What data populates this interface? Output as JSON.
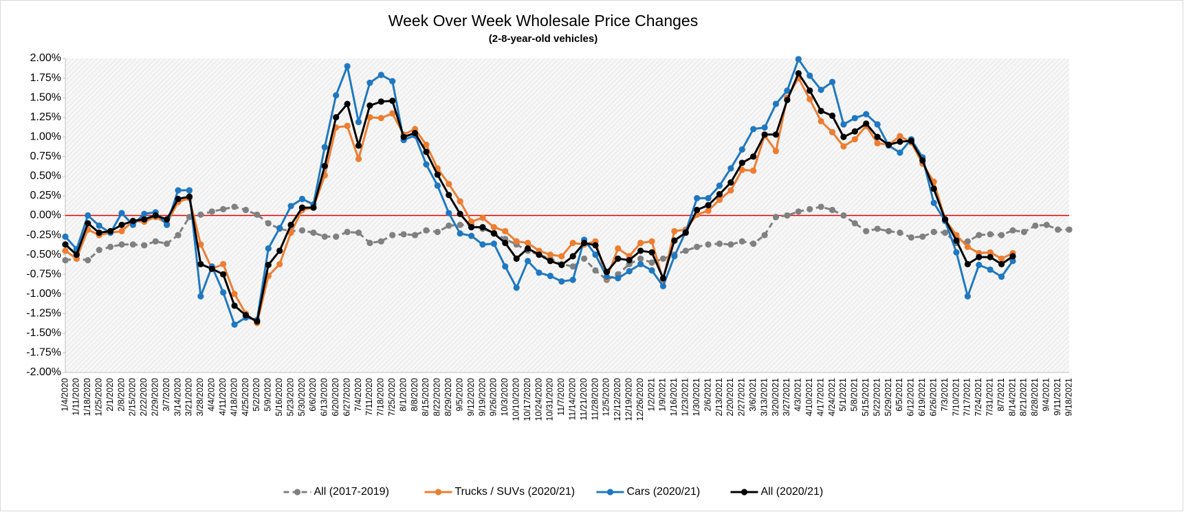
{
  "chart_data": {
    "type": "line",
    "title": "Week Over Week Wholesale Price Changes",
    "subtitle": "(2-8-year-old vehicles)",
    "categories": [
      "1/4/2020",
      "1/11/2020",
      "1/18/2020",
      "1/25/2020",
      "2/1/2020",
      "2/8/2020",
      "2/15/2020",
      "2/22/2020",
      "2/29/2020",
      "3/7/2020",
      "3/14/2020",
      "3/21/2020",
      "3/28/2020",
      "4/4/2020",
      "4/11/2020",
      "4/18/2020",
      "4/25/2020",
      "5/2/2020",
      "5/9/2020",
      "5/16/2020",
      "5/23/2020",
      "5/30/2020",
      "6/6/2020",
      "6/13/2020",
      "6/20/2020",
      "6/27/2020",
      "7/4/2020",
      "7/11/2020",
      "7/18/2020",
      "7/25/2020",
      "8/1/2020",
      "8/8/2020",
      "8/15/2020",
      "8/22/2020",
      "8/29/2020",
      "9/5/2020",
      "9/12/2020",
      "9/19/2020",
      "9/26/2020",
      "10/3/2020",
      "10/10/2020",
      "10/17/2020",
      "10/24/2020",
      "10/31/2020",
      "11/7/2020",
      "11/14/2020",
      "11/21/2020",
      "11/28/2020",
      "12/5/2020",
      "12/12/2020",
      "12/19/2020",
      "12/26/2020",
      "1/2/2021",
      "1/9/2021",
      "1/16/2021",
      "1/23/2021",
      "1/30/2021",
      "2/6/2021",
      "2/13/2021",
      "2/20/2021",
      "2/27/2021",
      "3/6/2021",
      "3/13/2021",
      "3/20/2021",
      "3/27/2021",
      "4/3/2021",
      "4/10/2021",
      "4/17/2021",
      "4/24/2021",
      "5/1/2021",
      "5/8/2021",
      "5/15/2021",
      "5/22/2021",
      "5/29/2021",
      "6/5/2021",
      "6/12/2021",
      "6/19/2021",
      "6/26/2021",
      "7/3/2021",
      "7/10/2021",
      "7/17/2021",
      "7/24/2021",
      "7/31/2021",
      "8/7/2021",
      "8/14/2021",
      "8/21/2021",
      "8/28/2021",
      "9/4/2021",
      "9/11/2021",
      "9/18/2021"
    ],
    "series": [
      {
        "name": "All (2017-2019)",
        "color": "#808080",
        "style": "dashed",
        "values": [
          -0.57,
          -0.55,
          -0.57,
          -0.44,
          -0.4,
          -0.37,
          -0.37,
          -0.38,
          -0.33,
          -0.36,
          -0.25,
          -0.02,
          0.01,
          0.05,
          0.08,
          0.11,
          0.07,
          0.01,
          -0.1,
          -0.17,
          -0.2,
          -0.19,
          -0.22,
          -0.27,
          -0.27,
          -0.21,
          -0.22,
          -0.35,
          -0.33,
          -0.25,
          -0.24,
          -0.25,
          -0.19,
          -0.21,
          -0.13,
          -0.12,
          -0.12,
          -0.17,
          -0.22,
          -0.3,
          -0.37,
          -0.45,
          -0.5,
          -0.55,
          -0.62,
          -0.65,
          -0.55,
          -0.7,
          -0.82,
          -0.75,
          -0.62,
          -0.55,
          -0.6,
          -0.55,
          -0.5,
          -0.45,
          -0.4,
          -0.37,
          -0.36,
          -0.37,
          -0.33,
          -0.36,
          -0.25,
          -0.02,
          0.0,
          0.05,
          0.08,
          0.11,
          0.07,
          0.0,
          -0.1,
          -0.2,
          -0.17,
          -0.2,
          -0.22,
          -0.28,
          -0.27,
          -0.21,
          -0.22,
          -0.35,
          -0.33,
          -0.25,
          -0.24,
          -0.25,
          -0.19,
          -0.21,
          -0.13,
          -0.12,
          -0.18,
          -0.18
        ]
      },
      {
        "name": "Trucks / SUVs (2020/21)",
        "color": "#ed7d31",
        "values": [
          -0.45,
          -0.55,
          -0.18,
          -0.25,
          -0.22,
          -0.2,
          -0.07,
          -0.08,
          -0.02,
          -0.1,
          0.17,
          0.22,
          -0.37,
          -0.68,
          -0.62,
          -1.0,
          -1.25,
          -1.37,
          -0.77,
          -0.62,
          -0.22,
          0.07,
          0.1,
          0.51,
          1.12,
          1.14,
          0.72,
          1.25,
          1.24,
          1.3,
          1.03,
          1.1,
          0.9,
          0.6,
          0.4,
          0.18,
          -0.08,
          -0.03,
          -0.15,
          -0.2,
          -0.33,
          -0.35,
          -0.45,
          -0.5,
          -0.52,
          -0.35,
          -0.37,
          -0.33,
          -0.8,
          -0.42,
          -0.52,
          -0.35,
          -0.33,
          -0.82,
          -0.2,
          -0.18,
          0.01,
          0.06,
          0.2,
          0.32,
          0.58,
          0.57,
          1.02,
          0.82,
          1.5,
          1.75,
          1.48,
          1.2,
          1.06,
          0.88,
          0.97,
          1.14,
          0.92,
          0.9,
          1.01,
          0.93,
          0.66,
          0.43,
          -0.05,
          -0.25,
          -0.4,
          -0.48,
          -0.47,
          -0.55,
          -0.48,
          null,
          null,
          null,
          null,
          null
        ]
      },
      {
        "name": "Cars (2020/21)",
        "color": "#1f78c1",
        "values": [
          -0.27,
          -0.43,
          0.0,
          -0.13,
          -0.22,
          0.03,
          -0.12,
          0.02,
          0.04,
          -0.12,
          0.32,
          0.32,
          -1.03,
          -0.65,
          -0.98,
          -1.39,
          -1.3,
          -1.33,
          -0.42,
          -0.16,
          0.12,
          0.21,
          0.14,
          0.87,
          1.53,
          1.9,
          1.19,
          1.69,
          1.79,
          1.71,
          0.96,
          1.02,
          0.65,
          0.38,
          0.03,
          -0.23,
          -0.26,
          -0.37,
          -0.36,
          -0.65,
          -0.92,
          -0.58,
          -0.73,
          -0.77,
          -0.84,
          -0.82,
          -0.31,
          -0.5,
          -0.78,
          -0.8,
          -0.71,
          -0.62,
          -0.7,
          -0.9,
          -0.52,
          -0.21,
          0.22,
          0.22,
          0.38,
          0.6,
          0.84,
          1.1,
          1.12,
          1.42,
          1.59,
          1.99,
          1.78,
          1.6,
          1.7,
          1.16,
          1.24,
          1.29,
          1.16,
          0.89,
          0.8,
          0.97,
          0.74,
          0.16,
          -0.07,
          -0.47,
          -1.03,
          -0.63,
          -0.69,
          -0.78,
          -0.58,
          null,
          null,
          null,
          null,
          null
        ]
      },
      {
        "name": "All (2020/21)",
        "color": "#000000",
        "values": [
          -0.37,
          -0.5,
          -0.1,
          -0.22,
          -0.2,
          -0.12,
          -0.07,
          -0.05,
          0.0,
          -0.05,
          0.21,
          0.24,
          -0.62,
          -0.68,
          -0.75,
          -1.15,
          -1.27,
          -1.35,
          -0.63,
          -0.45,
          -0.12,
          0.1,
          0.1,
          0.63,
          1.25,
          1.42,
          0.89,
          1.4,
          1.45,
          1.46,
          1.0,
          1.05,
          0.81,
          0.52,
          0.26,
          0.02,
          -0.15,
          -0.15,
          -0.23,
          -0.35,
          -0.55,
          -0.42,
          -0.5,
          -0.58,
          -0.63,
          -0.52,
          -0.35,
          -0.38,
          -0.72,
          -0.55,
          -0.57,
          -0.45,
          -0.47,
          -0.8,
          -0.32,
          -0.22,
          0.07,
          0.13,
          0.27,
          0.42,
          0.67,
          0.75,
          1.03,
          1.03,
          1.47,
          1.81,
          1.59,
          1.33,
          1.27,
          1.0,
          1.07,
          1.17,
          1.0,
          0.9,
          0.94,
          0.95,
          0.7,
          0.34,
          -0.05,
          -0.32,
          -0.62,
          -0.53,
          -0.53,
          -0.62,
          -0.52,
          null,
          null,
          null,
          null,
          null
        ]
      }
    ],
    "ylim": [
      -2,
      2
    ],
    "yticks": [
      {
        "value": 2,
        "label": "2.00%"
      },
      {
        "value": 1.75,
        "label": "1.75%"
      },
      {
        "value": 1.5,
        "label": "1.50%"
      },
      {
        "value": 1.25,
        "label": "1.25%"
      },
      {
        "value": 1,
        "label": "1.00%"
      },
      {
        "value": 0.75,
        "label": "0.75%"
      },
      {
        "value": 0.5,
        "label": "0.50%"
      },
      {
        "value": 0.25,
        "label": "0.25%"
      },
      {
        "value": 0,
        "label": "0.00%"
      },
      {
        "value": -0.25,
        "label": "-0.25%"
      },
      {
        "value": -0.5,
        "label": "-0.50%"
      },
      {
        "value": -0.75,
        "label": "-0.75%"
      },
      {
        "value": -1,
        "label": "-1.00%"
      },
      {
        "value": -1.25,
        "label": "-1.25%"
      },
      {
        "value": -1.5,
        "label": "-1.50%"
      },
      {
        "value": -1.75,
        "label": "-1.75%"
      },
      {
        "value": -2,
        "label": "-2.00%"
      }
    ],
    "zero_line_color": "#e00000",
    "legend": "bottom"
  }
}
